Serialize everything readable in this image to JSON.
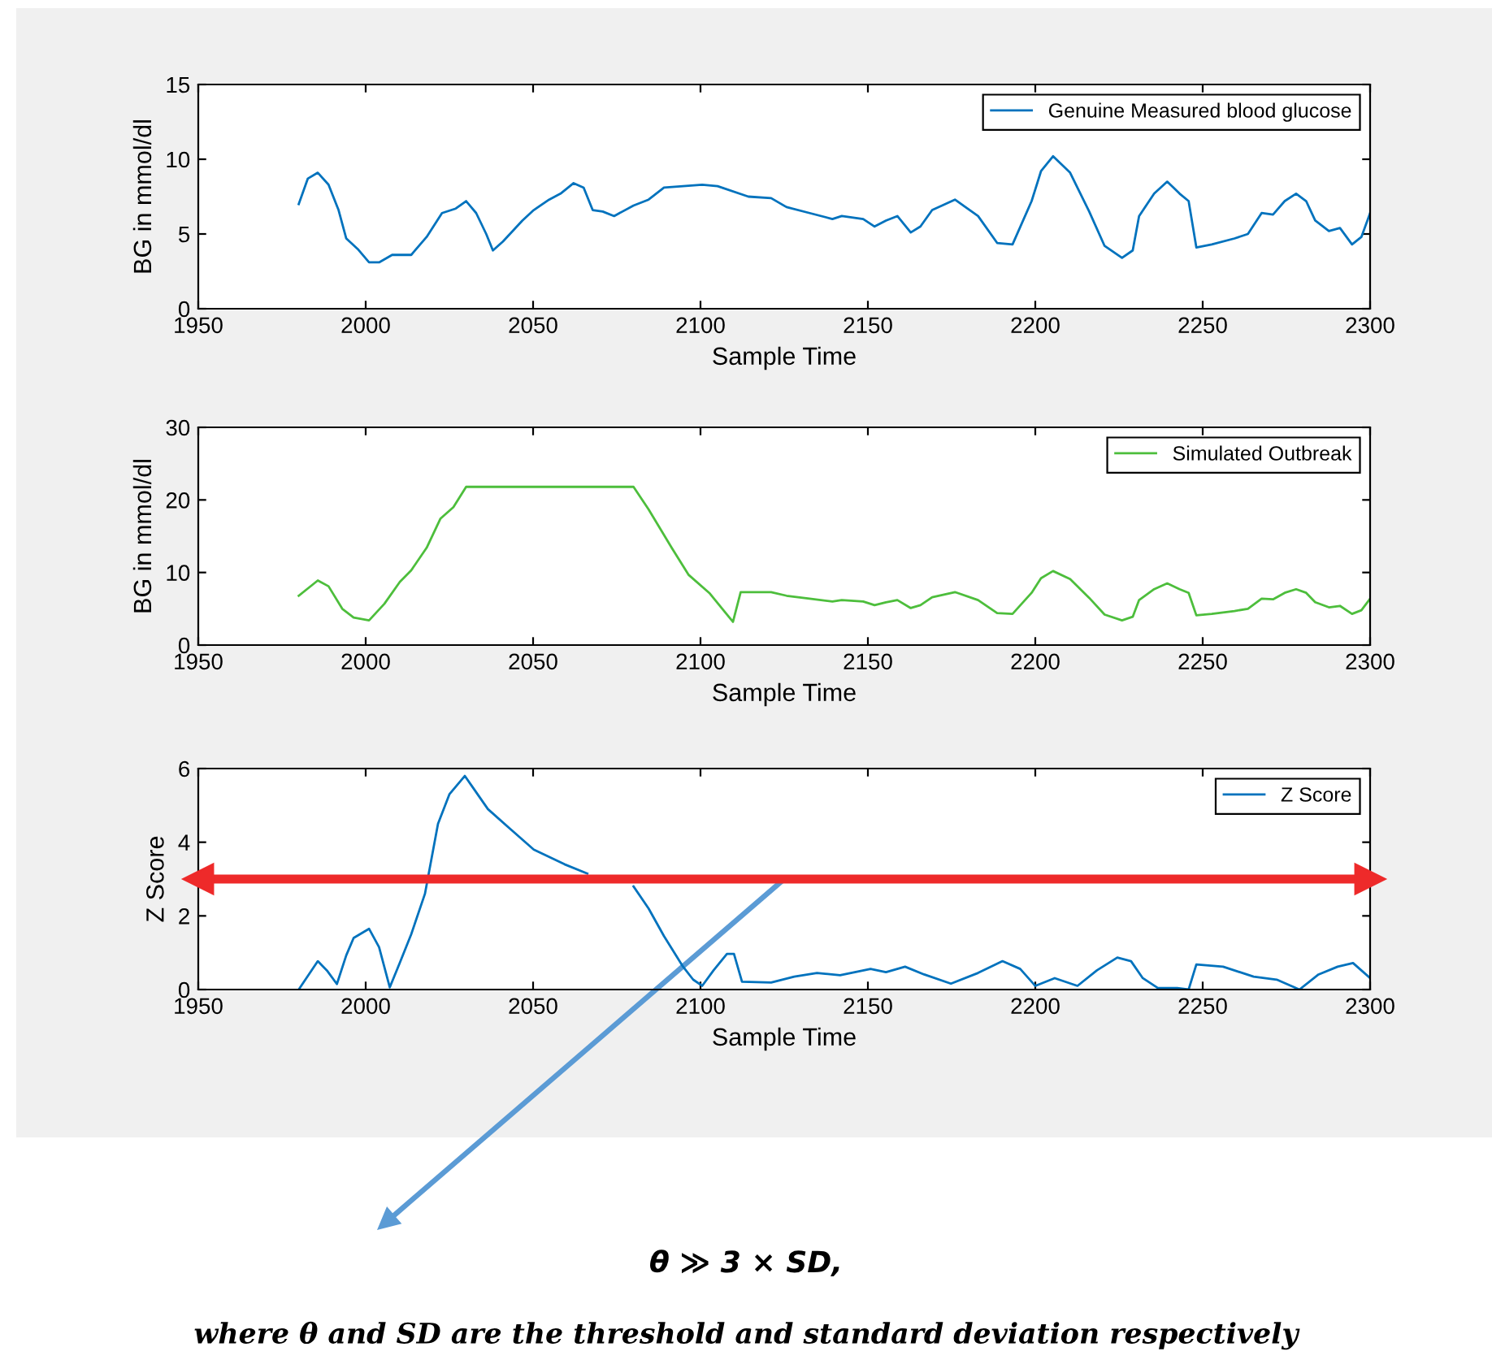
{
  "chart_data": [
    {
      "type": "line",
      "xlabel": "Sample Time",
      "ylabel": "BG in mmol/dl",
      "xlim": [
        1950,
        2300
      ],
      "ylim": [
        0,
        15
      ],
      "xticks": [
        1950,
        2000,
        2050,
        2100,
        2150,
        2200,
        2250,
        2300
      ],
      "yticks": [
        0,
        5,
        10,
        15
      ],
      "grid": false,
      "legend": "top right",
      "series": [
        {
          "name": "Genuine Measured blood glucose",
          "color": "#0072bd",
          "x": [
            1980,
            1982.7,
            1985.7,
            1988.9,
            1991.9,
            1994.2,
            1997.6,
            2001,
            2004,
            2007.9,
            2013.6,
            2018.2,
            2022.8,
            2026.9,
            2030,
            2033,
            2036,
            2038,
            2041,
            2046.8,
            2050.2,
            2054.8,
            2058.2,
            2062.1,
            2065.1,
            2067.8,
            2070.8,
            2074.2,
            2080,
            2084.5,
            2089.1,
            2100.5,
            2105.1,
            2114.3,
            2121.1,
            2125.7,
            2132.6,
            2139.4,
            2142.2,
            2148.6,
            2152,
            2155.4,
            2158.8,
            2162.8,
            2165.7,
            2169.2,
            2176,
            2182.9,
            2188.6,
            2193.2,
            2198.9,
            2201.7,
            2205.3,
            2210.4,
            2216.1,
            2220.7,
            2225.9,
            2229.1,
            2231,
            2235.5,
            2239.4,
            2243.1,
            2245.8,
            2248.1,
            2252.7,
            2259.5,
            2263.5,
            2267.6,
            2271,
            2274.5,
            2277.9,
            2280.9,
            2283.6,
            2287.7,
            2291,
            2294.6,
            2297.4,
            2300
          ],
          "values": [
            7.0,
            8.7,
            9.1,
            8.3,
            6.6,
            4.7,
            4.0,
            3.1,
            3.1,
            3.6,
            3.6,
            4.8,
            6.4,
            6.7,
            7.2,
            6.4,
            5.0,
            3.9,
            4.5,
            5.9,
            6.6,
            7.3,
            7.7,
            8.4,
            8.1,
            6.6,
            6.5,
            6.2,
            6.9,
            7.3,
            8.1,
            8.3,
            8.2,
            7.5,
            7.4,
            6.8,
            6.4,
            6.0,
            6.2,
            6.0,
            5.5,
            5.9,
            6.2,
            5.1,
            5.5,
            6.6,
            7.3,
            6.2,
            4.4,
            4.3,
            7.2,
            9.2,
            10.2,
            9.1,
            6.5,
            4.2,
            3.4,
            3.9,
            6.2,
            7.7,
            8.5,
            7.7,
            7.2,
            4.1,
            4.3,
            4.7,
            5.0,
            6.4,
            6.3,
            7.2,
            7.7,
            7.2,
            5.9,
            5.2,
            5.4,
            4.3,
            4.8,
            6.4
          ]
        }
      ]
    },
    {
      "type": "line",
      "xlabel": "Sample Time",
      "ylabel": "BG in mmol/dl",
      "xlim": [
        1950,
        2300
      ],
      "ylim": [
        0,
        30
      ],
      "xticks": [
        1950,
        2000,
        2050,
        2100,
        2150,
        2200,
        2250,
        2300
      ],
      "yticks": [
        0,
        10,
        20,
        30
      ],
      "grid": false,
      "legend": "top right",
      "series": [
        {
          "name": "Simulated Outbreak",
          "color": "#4dbe3c",
          "x": [
            1980,
            1985.7,
            1988.9,
            1993,
            1996.4,
            2001,
            2005.6,
            2010.2,
            2013.6,
            2018.2,
            2022.3,
            2026.2,
            2030,
            2080,
            2084.5,
            2091.4,
            2096.4,
            2102.8,
            2107.9,
            2109.7,
            2112,
            2121.1,
            2125.7,
            2132.6,
            2139.4,
            2142.2,
            2148.6,
            2152,
            2155.4,
            2158.8,
            2162.8,
            2165.7,
            2169.2,
            2176,
            2182.9,
            2188.6,
            2193.2,
            2198.9,
            2201.7,
            2205.3,
            2210.4,
            2216.1,
            2220.7,
            2225.9,
            2229.1,
            2231,
            2235.5,
            2239.4,
            2243.1,
            2245.8,
            2248.1,
            2252.7,
            2259.5,
            2263.5,
            2267.6,
            2271,
            2274.5,
            2277.9,
            2280.9,
            2283.6,
            2287.7,
            2291,
            2294.6,
            2297.4,
            2300
          ],
          "values": [
            6.8,
            8.9,
            8.1,
            5.0,
            3.8,
            3.4,
            5.7,
            8.7,
            10.3,
            13.4,
            17.4,
            19.0,
            21.8,
            21.8,
            18.7,
            13.4,
            9.7,
            7.1,
            4.2,
            3.2,
            7.3,
            7.3,
            6.8,
            6.4,
            6.0,
            6.2,
            6.0,
            5.5,
            5.9,
            6.2,
            5.1,
            5.5,
            6.6,
            7.3,
            6.2,
            4.4,
            4.3,
            7.2,
            9.2,
            10.2,
            9.1,
            6.5,
            4.2,
            3.4,
            3.9,
            6.2,
            7.7,
            8.5,
            7.7,
            7.2,
            4.1,
            4.3,
            4.7,
            5.0,
            6.4,
            6.3,
            7.2,
            7.7,
            7.2,
            5.9,
            5.2,
            5.4,
            4.3,
            4.8,
            6.4
          ]
        }
      ]
    },
    {
      "type": "line",
      "xlabel": "Sample Time",
      "ylabel": "Z Score",
      "xlim": [
        1950,
        2300
      ],
      "ylim": [
        0,
        6
      ],
      "xticks": [
        1950,
        2000,
        2050,
        2100,
        2150,
        2200,
        2250,
        2300
      ],
      "yticks": [
        0,
        2,
        4,
        6
      ],
      "grid": false,
      "legend": "top right",
      "ref_lines": [
        {
          "axis": "y",
          "value": 3,
          "color": "#ee2a2a"
        }
      ],
      "annotations": [
        "θ ≫ 3 × SD,",
        "where θ and SD are the threshold and standard deviation respectively"
      ],
      "series": [
        {
          "name": "Z Score",
          "color": "#0072bd",
          "x": [
            1980,
            1985.7,
            1988.4,
            1991.4,
            1994.2,
            1996.4,
            2001,
            2004,
            2007.2,
            2010.2,
            2013.6,
            2017.7,
            2021.6,
            2025,
            2029.6,
            2031.9,
            2036.5,
            2043.3,
            2050.2,
            2059.4,
            2066.2,
            2073.1,
            2080,
            2084.5,
            2089.1,
            2094.8,
            2097.8,
            2100.5,
            2103.9,
            2107.9,
            2110,
            2112.4,
            2121.1,
            2128,
            2134.8,
            2141.7,
            2150.8,
            2155.4,
            2161.1,
            2166.8,
            2174.8,
            2182.9,
            2190.2,
            2195.5,
            2200,
            2205.8,
            2212.6,
            2218.4,
            2224.5,
            2228.6,
            2232.1,
            2236.6,
            2242.4,
            2245.8,
            2248.1,
            2256.1,
            2265.2,
            2272.1,
            2278.9,
            2284.6,
            2290.3,
            2294.9,
            2300
          ],
          "values": [
            0,
            0.77,
            0.52,
            0.15,
            0.93,
            1.4,
            1.65,
            1.15,
            0.06,
            0.73,
            1.5,
            2.6,
            4.5,
            5.3,
            5.8,
            5.5,
            4.9,
            4.35,
            3.8,
            3.4,
            3.15,
            null,
            2.8,
            2.2,
            1.45,
            0.62,
            0.27,
            0.1,
            0.52,
            0.97,
            0.97,
            0.21,
            0.19,
            0.35,
            0.45,
            0.39,
            0.56,
            0.47,
            0.62,
            0.41,
            0.16,
            0.45,
            0.77,
            0.56,
            0.1,
            0.31,
            0.1,
            0.52,
            0.87,
            0.77,
            0.31,
            0.04,
            0.04,
            0,
            0.68,
            0.62,
            0.35,
            0.27,
            0,
            0.41,
            0.62,
            0.72,
            0.31
          ]
        }
      ]
    }
  ]
}
